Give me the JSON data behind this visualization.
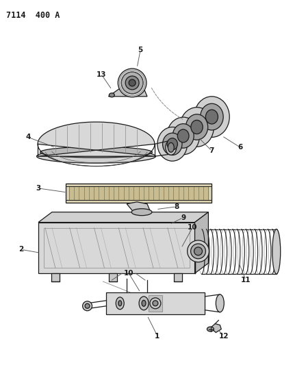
{
  "title": "7114  400 A",
  "bg_color": "#ffffff",
  "line_color": "#1a1a1a",
  "fig_width": 4.28,
  "fig_height": 5.33,
  "dpi": 100
}
